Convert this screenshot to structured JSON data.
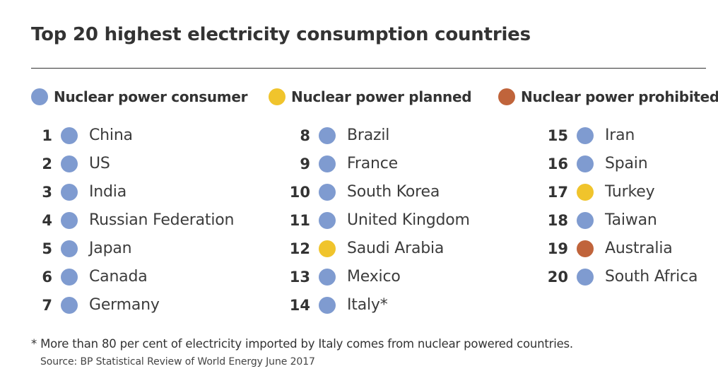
{
  "title": "Top 20 highest electricity consumption countries",
  "colors": {
    "consumer": "#7f9bd0",
    "planned": "#f0c42c",
    "prohibited": "#c0643b"
  },
  "legend": [
    {
      "label": "Nuclear power consumer",
      "status": "consumer"
    },
    {
      "label": "Nuclear power planned",
      "status": "planned"
    },
    {
      "label": "Nuclear power prohibited",
      "status": "prohibited"
    }
  ],
  "columns": [
    [
      {
        "rank": "1",
        "name": "China",
        "status": "consumer"
      },
      {
        "rank": "2",
        "name": "US",
        "status": "consumer"
      },
      {
        "rank": "3",
        "name": "India",
        "status": "consumer"
      },
      {
        "rank": "4",
        "name": "Russian Federation",
        "status": "consumer"
      },
      {
        "rank": "5",
        "name": "Japan",
        "status": "consumer"
      },
      {
        "rank": "6",
        "name": "Canada",
        "status": "consumer"
      },
      {
        "rank": "7",
        "name": "Germany",
        "status": "consumer"
      }
    ],
    [
      {
        "rank": "8",
        "name": "Brazil",
        "status": "consumer"
      },
      {
        "rank": "9",
        "name": "France",
        "status": "consumer"
      },
      {
        "rank": "10",
        "name": "South Korea",
        "status": "consumer"
      },
      {
        "rank": "11",
        "name": "United Kingdom",
        "status": "consumer"
      },
      {
        "rank": "12",
        "name": "Saudi Arabia",
        "status": "planned"
      },
      {
        "rank": "13",
        "name": "Mexico",
        "status": "consumer"
      },
      {
        "rank": "14",
        "name": "Italy*",
        "status": "consumer"
      }
    ],
    [
      {
        "rank": "15",
        "name": "Iran",
        "status": "consumer"
      },
      {
        "rank": "16",
        "name": "Spain",
        "status": "consumer"
      },
      {
        "rank": "17",
        "name": "Turkey",
        "status": "planned"
      },
      {
        "rank": "18",
        "name": "Taiwan",
        "status": "consumer"
      },
      {
        "rank": "19",
        "name": "Australia",
        "status": "prohibited"
      },
      {
        "rank": "20",
        "name": "South Africa",
        "status": "consumer"
      }
    ]
  ],
  "footnote": "* More than 80 per cent of electricity imported by Italy comes from nuclear powered countries.",
  "source": "Source: BP Statistical Review of World Energy June 2017"
}
